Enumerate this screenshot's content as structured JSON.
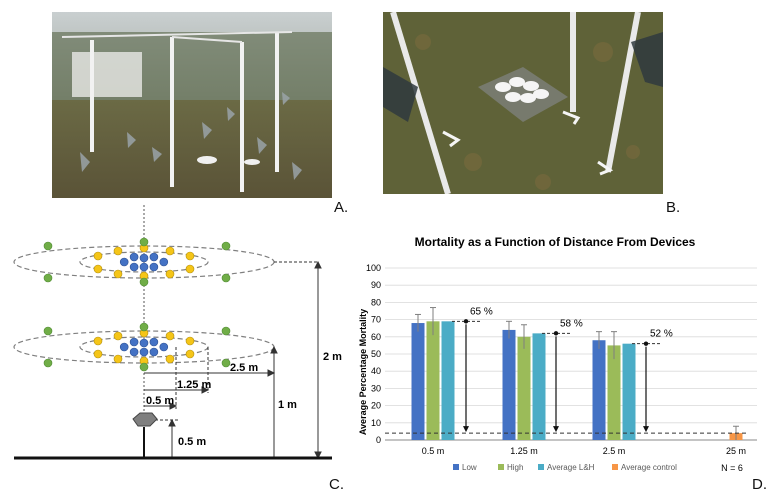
{
  "panel_labels": {
    "a": "A.",
    "b": "B.",
    "c": "C.",
    "d": "D."
  },
  "schematic": {
    "dims": {
      "d_0_5": "0.5 m",
      "d_1_25": "1.25 m",
      "d_2_5": "2.5 m",
      "h_2": "2 m",
      "h_1": "1 m",
      "h_0_5": "0.5 m"
    },
    "colors": {
      "inner": "#4472c4",
      "middle": "#f5c518",
      "outer": "#70ad47",
      "device": "#7f7f7f"
    }
  },
  "chart_data": {
    "type": "bar",
    "title": "Mortality as a Function of Distance From Devices",
    "ylabel": "Average Percentage Mortality",
    "xlabel": "",
    "ylim": [
      0,
      100
    ],
    "yticks": [
      0,
      10,
      20,
      30,
      40,
      50,
      60,
      70,
      80,
      90,
      100
    ],
    "categories": [
      "0.5 m",
      "1.25 m",
      "2.5 m",
      "25 m"
    ],
    "series": [
      {
        "name": "Low",
        "color": "#4472c4",
        "values": [
          68,
          64,
          58,
          null
        ],
        "errors": [
          5,
          5,
          5,
          null
        ]
      },
      {
        "name": "High",
        "color": "#9bbb59",
        "values": [
          69,
          60,
          55,
          null
        ],
        "errors": [
          8,
          7,
          8,
          null
        ]
      },
      {
        "name": "Average L&H",
        "color": "#4bacc6",
        "values": [
          69,
          62,
          56,
          null
        ],
        "errors": [
          0,
          0,
          0,
          null
        ]
      },
      {
        "name": "Average control",
        "color": "#f79646",
        "values": [
          null,
          null,
          null,
          4
        ],
        "errors": [
          null,
          null,
          null,
          4
        ]
      }
    ],
    "annotations": [
      {
        "category": "0.5 m",
        "text": "65 %"
      },
      {
        "category": "1.25 m",
        "text": "58 %"
      },
      {
        "category": "2.5 m",
        "text": "52 %"
      }
    ],
    "control_line": 4,
    "note": "N = 6",
    "grid": true,
    "legend_placement": "bottom"
  }
}
